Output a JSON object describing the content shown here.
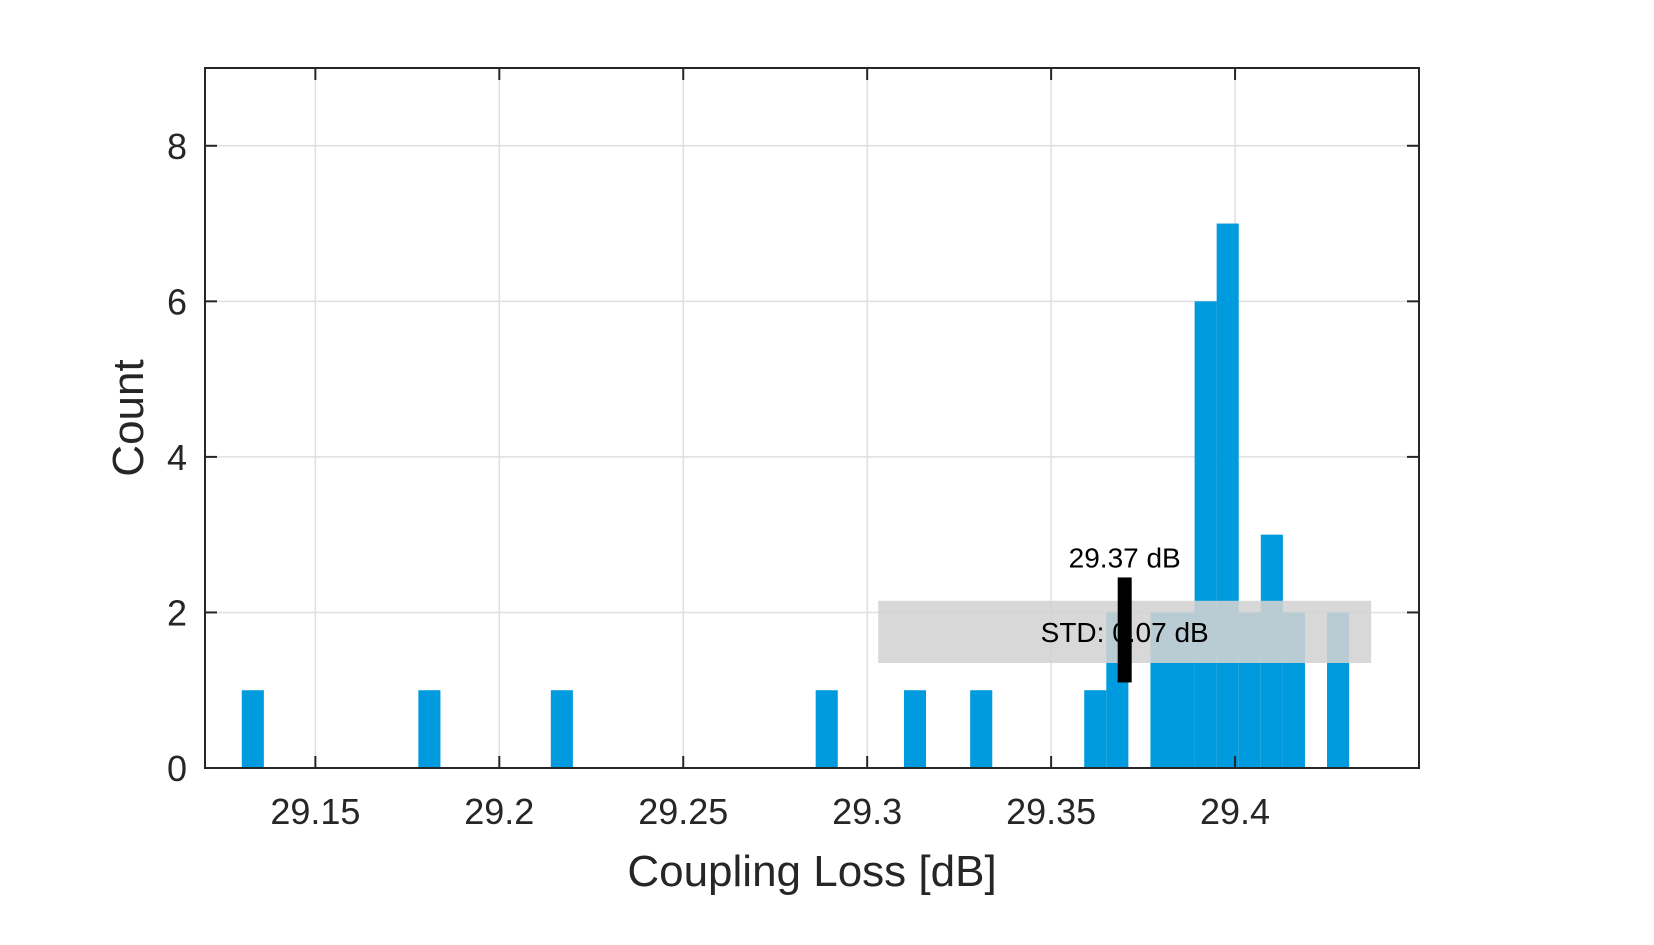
{
  "chart_data": {
    "type": "bar",
    "xlabel": "Coupling Loss [dB]",
    "ylabel": "Count",
    "xlim": [
      29.12,
      29.45
    ],
    "ylim": [
      0,
      9
    ],
    "xticks": [
      "29.15",
      "29.2",
      "29.25",
      "29.3",
      "29.35",
      "29.4"
    ],
    "xtick_values": [
      29.15,
      29.2,
      29.25,
      29.3,
      29.35,
      29.4
    ],
    "yticks": [
      "0",
      "2",
      "4",
      "6",
      "8"
    ],
    "ytick_values": [
      0,
      2,
      4,
      6,
      8
    ],
    "grid": true,
    "bin_width": 0.006,
    "bins": [
      {
        "x": 29.133,
        "count": 1
      },
      {
        "x": 29.181,
        "count": 1
      },
      {
        "x": 29.217,
        "count": 1
      },
      {
        "x": 29.289,
        "count": 1
      },
      {
        "x": 29.313,
        "count": 1
      },
      {
        "x": 29.331,
        "count": 1
      },
      {
        "x": 29.362,
        "count": 1
      },
      {
        "x": 29.368,
        "count": 2
      },
      {
        "x": 29.38,
        "count": 2
      },
      {
        "x": 29.386,
        "count": 2
      },
      {
        "x": 29.392,
        "count": 6
      },
      {
        "x": 29.398,
        "count": 7
      },
      {
        "x": 29.404,
        "count": 2
      },
      {
        "x": 29.41,
        "count": 3
      },
      {
        "x": 29.416,
        "count": 2
      },
      {
        "x": 29.428,
        "count": 2
      }
    ],
    "mean": {
      "x": 29.37,
      "label": "29.37 dB",
      "error_low": 1.1,
      "error_high": 2.45
    },
    "std_label": "STD: 0.07 dB",
    "std_band": {
      "x_start": 29.303,
      "x_end": 29.437,
      "y_low": 1.35,
      "y_high": 2.15
    },
    "colors": {
      "bar": "#009ADE",
      "axis": "#262626",
      "grid": "#DFDFDF",
      "band": "#D3D3D3",
      "marker": "#000000"
    }
  }
}
